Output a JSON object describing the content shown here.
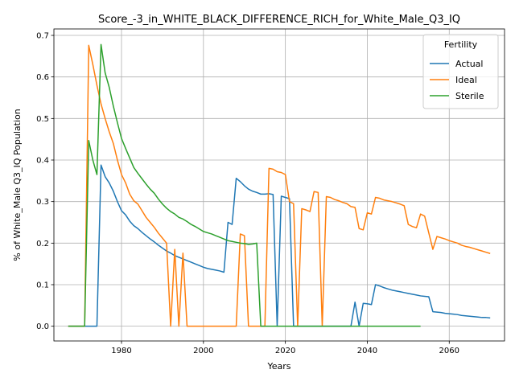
{
  "chart_data": {
    "type": "line",
    "title": "Score_-3_in_WHITE_BLACK_DIFFERENCE_RICH_for_White_Male_Q3_IQ",
    "xlabel": "Years",
    "ylabel": "% of White_Male Q3_IQ Population",
    "xlim": [
      1963.5,
      2073.5
    ],
    "ylim": [
      -0.0355,
      0.7155
    ],
    "x_ticks": [
      1980,
      2000,
      2020,
      2040,
      2060
    ],
    "y_ticks": [
      0.0,
      0.1,
      0.2,
      0.3,
      0.4,
      0.5,
      0.6,
      0.7
    ],
    "grid": true,
    "legend": {
      "title": "Fertility",
      "position": "top-right"
    },
    "series": [
      {
        "name": "Actual",
        "color": "#1f77b4",
        "points": [
          [
            1967,
            0
          ],
          [
            1968,
            0
          ],
          [
            1969,
            0
          ],
          [
            1970,
            0
          ],
          [
            1971,
            0
          ],
          [
            1972,
            0
          ],
          [
            1973,
            0
          ],
          [
            1974,
            0
          ],
          [
            1975,
            0.388
          ],
          [
            1976,
            0.36
          ],
          [
            1977,
            0.345
          ],
          [
            1978,
            0.325
          ],
          [
            1979,
            0.3
          ],
          [
            1980,
            0.278
          ],
          [
            1981,
            0.268
          ],
          [
            1982,
            0.253
          ],
          [
            1983,
            0.242
          ],
          [
            1984,
            0.235
          ],
          [
            1985,
            0.226
          ],
          [
            1986,
            0.218
          ],
          [
            1987,
            0.21
          ],
          [
            1988,
            0.203
          ],
          [
            1989,
            0.195
          ],
          [
            1990,
            0.188
          ],
          [
            1991,
            0.181
          ],
          [
            1992,
            0.176
          ],
          [
            1993,
            0.17
          ],
          [
            1994,
            0.166
          ],
          [
            1995,
            0.162
          ],
          [
            1996,
            0.158
          ],
          [
            1997,
            0.154
          ],
          [
            1998,
            0.15
          ],
          [
            1999,
            0.146
          ],
          [
            2000,
            0.142
          ],
          [
            2001,
            0.139
          ],
          [
            2002,
            0.137
          ],
          [
            2003,
            0.135
          ],
          [
            2004,
            0.133
          ],
          [
            2005,
            0.13
          ],
          [
            2006,
            0.25
          ],
          [
            2007,
            0.245
          ],
          [
            2008,
            0.356
          ],
          [
            2009,
            0.348
          ],
          [
            2010,
            0.338
          ],
          [
            2011,
            0.33
          ],
          [
            2012,
            0.325
          ],
          [
            2013,
            0.322
          ],
          [
            2014,
            0.318
          ],
          [
            2015,
            0.318
          ],
          [
            2016,
            0.319
          ],
          [
            2017,
            0.317
          ],
          [
            2018,
            0
          ],
          [
            2019,
            0.313
          ],
          [
            2020,
            0.31
          ],
          [
            2021,
            0.307
          ],
          [
            2022,
            0
          ],
          [
            2023,
            0
          ],
          [
            2024,
            0
          ],
          [
            2025,
            0
          ],
          [
            2026,
            0
          ],
          [
            2027,
            0
          ],
          [
            2028,
            0
          ],
          [
            2029,
            0
          ],
          [
            2030,
            0
          ],
          [
            2031,
            0
          ],
          [
            2032,
            0
          ],
          [
            2033,
            0
          ],
          [
            2034,
            0
          ],
          [
            2035,
            0
          ],
          [
            2036,
            0
          ],
          [
            2037,
            0.058
          ],
          [
            2038,
            0
          ],
          [
            2039,
            0.055
          ],
          [
            2040,
            0.054
          ],
          [
            2041,
            0.052
          ],
          [
            2042,
            0.1
          ],
          [
            2043,
            0.097
          ],
          [
            2044,
            0.093
          ],
          [
            2045,
            0.09
          ],
          [
            2046,
            0.087
          ],
          [
            2047,
            0.085
          ],
          [
            2048,
            0.083
          ],
          [
            2049,
            0.081
          ],
          [
            2050,
            0.079
          ],
          [
            2051,
            0.077
          ],
          [
            2052,
            0.075
          ],
          [
            2053,
            0.073
          ],
          [
            2054,
            0.072
          ],
          [
            2055,
            0.071
          ],
          [
            2056,
            0.035
          ],
          [
            2057,
            0.034
          ],
          [
            2058,
            0.033
          ],
          [
            2059,
            0.031
          ],
          [
            2060,
            0.03
          ],
          [
            2061,
            0.029
          ],
          [
            2062,
            0.028
          ],
          [
            2063,
            0.026
          ],
          [
            2064,
            0.025
          ],
          [
            2065,
            0.024
          ],
          [
            2066,
            0.023
          ],
          [
            2067,
            0.022
          ],
          [
            2068,
            0.021
          ],
          [
            2069,
            0.021
          ],
          [
            2070,
            0.02
          ]
        ]
      },
      {
        "name": "Ideal",
        "color": "#ff7f0e",
        "points": [
          [
            1967,
            0
          ],
          [
            1968,
            0
          ],
          [
            1969,
            0
          ],
          [
            1970,
            0
          ],
          [
            1971,
            0
          ],
          [
            1972,
            0.676
          ],
          [
            1973,
            0.63
          ],
          [
            1974,
            0.58
          ],
          [
            1975,
            0.535
          ],
          [
            1976,
            0.5
          ],
          [
            1977,
            0.468
          ],
          [
            1978,
            0.44
          ],
          [
            1979,
            0.4
          ],
          [
            1980,
            0.365
          ],
          [
            1981,
            0.345
          ],
          [
            1982,
            0.318
          ],
          [
            1983,
            0.302
          ],
          [
            1984,
            0.294
          ],
          [
            1985,
            0.278
          ],
          [
            1986,
            0.262
          ],
          [
            1987,
            0.25
          ],
          [
            1988,
            0.238
          ],
          [
            1989,
            0.224
          ],
          [
            1990,
            0.212
          ],
          [
            1991,
            0.2
          ],
          [
            1992,
            0
          ],
          [
            1993,
            0.185
          ],
          [
            1994,
            0
          ],
          [
            1995,
            0.176
          ],
          [
            1996,
            0
          ],
          [
            1997,
            0
          ],
          [
            1998,
            0
          ],
          [
            1999,
            0
          ],
          [
            2000,
            0
          ],
          [
            2001,
            0
          ],
          [
            2002,
            0
          ],
          [
            2003,
            0
          ],
          [
            2004,
            0
          ],
          [
            2005,
            0
          ],
          [
            2006,
            0
          ],
          [
            2007,
            0
          ],
          [
            2008,
            0
          ],
          [
            2009,
            0.222
          ],
          [
            2010,
            0.218
          ],
          [
            2011,
            0
          ],
          [
            2012,
            0
          ],
          [
            2013,
            0
          ],
          [
            2014,
            0
          ],
          [
            2015,
            0
          ],
          [
            2016,
            0.38
          ],
          [
            2017,
            0.378
          ],
          [
            2018,
            0.372
          ],
          [
            2019,
            0.37
          ],
          [
            2020,
            0.365
          ],
          [
            2021,
            0.3
          ],
          [
            2022,
            0.295
          ],
          [
            2023,
            0
          ],
          [
            2024,
            0.283
          ],
          [
            2025,
            0.28
          ],
          [
            2026,
            0.276
          ],
          [
            2027,
            0.324
          ],
          [
            2028,
            0.322
          ],
          [
            2029,
            0
          ],
          [
            2030,
            0.312
          ],
          [
            2031,
            0.31
          ],
          [
            2032,
            0.305
          ],
          [
            2033,
            0.302
          ],
          [
            2034,
            0.298
          ],
          [
            2035,
            0.295
          ],
          [
            2036,
            0.288
          ],
          [
            2037,
            0.286
          ],
          [
            2038,
            0.235
          ],
          [
            2039,
            0.232
          ],
          [
            2040,
            0.273
          ],
          [
            2041,
            0.27
          ],
          [
            2042,
            0.31
          ],
          [
            2043,
            0.308
          ],
          [
            2044,
            0.304
          ],
          [
            2045,
            0.302
          ],
          [
            2046,
            0.3
          ],
          [
            2047,
            0.297
          ],
          [
            2048,
            0.294
          ],
          [
            2049,
            0.29
          ],
          [
            2050,
            0.245
          ],
          [
            2051,
            0.24
          ],
          [
            2052,
            0.237
          ],
          [
            2053,
            0.27
          ],
          [
            2054,
            0.265
          ],
          [
            2055,
            0.225
          ],
          [
            2056,
            0.185
          ],
          [
            2057,
            0.216
          ],
          [
            2058,
            0.213
          ],
          [
            2059,
            0.21
          ],
          [
            2060,
            0.206
          ],
          [
            2061,
            0.203
          ],
          [
            2062,
            0.2
          ],
          [
            2063,
            0.195
          ],
          [
            2064,
            0.192
          ],
          [
            2065,
            0.19
          ],
          [
            2066,
            0.187
          ],
          [
            2067,
            0.184
          ],
          [
            2068,
            0.181
          ],
          [
            2069,
            0.178
          ],
          [
            2070,
            0.175
          ]
        ]
      },
      {
        "name": "Sterile",
        "color": "#2ca02c",
        "points": [
          [
            1967,
            0
          ],
          [
            1968,
            0
          ],
          [
            1969,
            0
          ],
          [
            1970,
            0
          ],
          [
            1971,
            0
          ],
          [
            1972,
            0.447
          ],
          [
            1973,
            0.4
          ],
          [
            1974,
            0.365
          ],
          [
            1975,
            0.678
          ],
          [
            1976,
            0.61
          ],
          [
            1977,
            0.575
          ],
          [
            1978,
            0.53
          ],
          [
            1979,
            0.49
          ],
          [
            1980,
            0.452
          ],
          [
            1981,
            0.428
          ],
          [
            1982,
            0.405
          ],
          [
            1983,
            0.382
          ],
          [
            1984,
            0.368
          ],
          [
            1985,
            0.355
          ],
          [
            1986,
            0.342
          ],
          [
            1987,
            0.33
          ],
          [
            1988,
            0.32
          ],
          [
            1989,
            0.306
          ],
          [
            1990,
            0.294
          ],
          [
            1991,
            0.284
          ],
          [
            1992,
            0.276
          ],
          [
            1993,
            0.27
          ],
          [
            1994,
            0.262
          ],
          [
            1995,
            0.258
          ],
          [
            1996,
            0.252
          ],
          [
            1997,
            0.245
          ],
          [
            1998,
            0.24
          ],
          [
            1999,
            0.234
          ],
          [
            2000,
            0.228
          ],
          [
            2001,
            0.225
          ],
          [
            2002,
            0.222
          ],
          [
            2003,
            0.218
          ],
          [
            2004,
            0.214
          ],
          [
            2005,
            0.21
          ],
          [
            2006,
            0.206
          ],
          [
            2007,
            0.204
          ],
          [
            2008,
            0.202
          ],
          [
            2009,
            0.2
          ],
          [
            2010,
            0.199
          ],
          [
            2011,
            0.197
          ],
          [
            2012,
            0.198
          ],
          [
            2013,
            0.2
          ],
          [
            2014,
            0
          ],
          [
            2015,
            0
          ],
          [
            2016,
            0
          ],
          [
            2017,
            0
          ],
          [
            2018,
            0
          ],
          [
            2019,
            0
          ],
          [
            2020,
            0
          ],
          [
            2021,
            0
          ],
          [
            2022,
            0
          ],
          [
            2023,
            0
          ],
          [
            2024,
            0
          ],
          [
            2025,
            0
          ],
          [
            2026,
            0
          ],
          [
            2027,
            0
          ],
          [
            2028,
            0
          ],
          [
            2029,
            0
          ],
          [
            2030,
            0
          ],
          [
            2031,
            0
          ],
          [
            2032,
            0
          ],
          [
            2033,
            0
          ],
          [
            2034,
            0
          ],
          [
            2035,
            0
          ],
          [
            2036,
            0
          ],
          [
            2037,
            0
          ],
          [
            2038,
            0
          ],
          [
            2039,
            0
          ],
          [
            2040,
            0
          ],
          [
            2041,
            0
          ],
          [
            2042,
            0
          ],
          [
            2043,
            0
          ],
          [
            2044,
            0
          ],
          [
            2045,
            0
          ],
          [
            2046,
            0
          ],
          [
            2047,
            0
          ],
          [
            2048,
            0
          ],
          [
            2049,
            0
          ],
          [
            2050,
            0
          ],
          [
            2051,
            0
          ],
          [
            2052,
            0
          ],
          [
            2053,
            0
          ]
        ]
      }
    ]
  }
}
